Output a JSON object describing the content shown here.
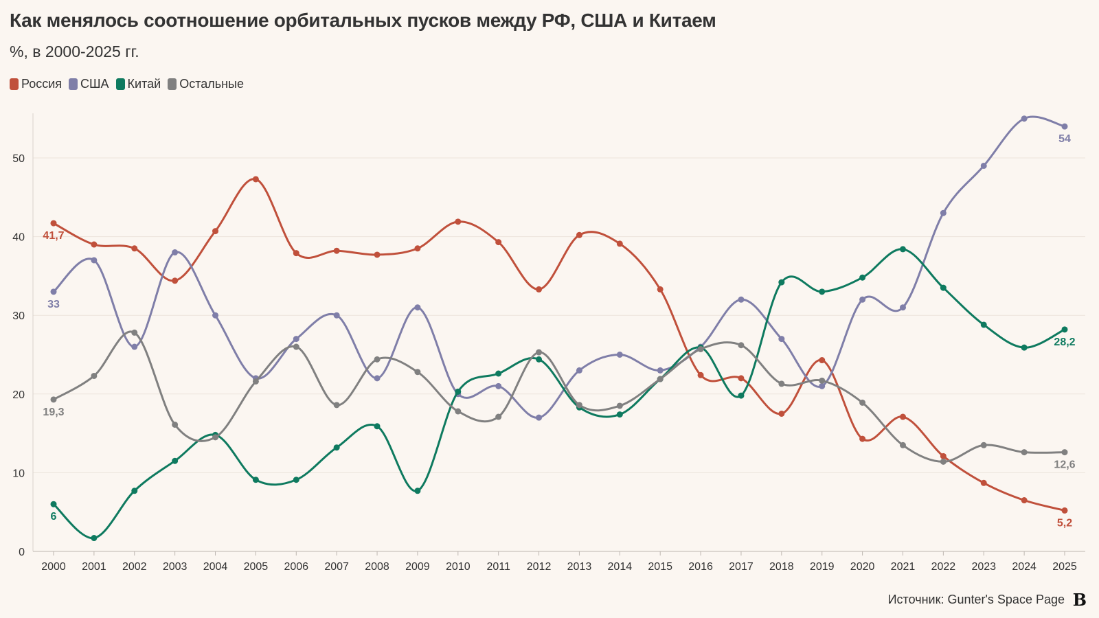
{
  "chart_data": {
    "type": "line",
    "title": "Как менялось соотношение орбитальных пусков между РФ, США и Китаем",
    "subtitle": "%, в 2000-2025 гг.",
    "x": [
      2000,
      2001,
      2002,
      2003,
      2004,
      2005,
      2006,
      2007,
      2008,
      2009,
      2010,
      2011,
      2012,
      2013,
      2014,
      2015,
      2016,
      2017,
      2018,
      2019,
      2020,
      2021,
      2022,
      2023,
      2024,
      2025
    ],
    "x_labels": [
      "2000",
      "2001",
      "2002",
      "2003",
      "2004",
      "2005",
      "2006",
      "2007",
      "2008",
      "2009",
      "2010",
      "2011",
      "2012",
      "2013",
      "2014",
      "2015",
      "2016",
      "2017",
      "2018",
      "2019",
      "2020",
      "2021",
      "2022",
      "2023",
      "2024",
      "2025"
    ],
    "ylim": [
      0,
      55
    ],
    "yticks": [
      0,
      10,
      20,
      30,
      40,
      50
    ],
    "ytick_labels": [
      "0",
      "10",
      "20",
      "30",
      "40",
      "50"
    ],
    "grid": true,
    "legend_position": "top-left",
    "series": [
      {
        "name": "Россия",
        "color": "#c0503b",
        "values": [
          41.7,
          39,
          38.5,
          34.4,
          40.7,
          47.3,
          37.9,
          38.2,
          37.7,
          38.5,
          41.9,
          39.3,
          33.3,
          40.2,
          39.1,
          33.3,
          22.4,
          22,
          17.5,
          24.3,
          14.3,
          17.1,
          12.1,
          8.7,
          6.5,
          5.2
        ],
        "start_label": "41,7",
        "end_label": "5,2"
      },
      {
        "name": "США",
        "color": "#7f7ea8",
        "values": [
          33,
          37,
          26,
          38,
          30,
          22,
          27,
          30,
          22,
          31,
          20,
          21,
          17,
          23,
          25,
          23,
          26,
          32,
          27,
          21,
          32,
          31,
          43,
          49,
          55,
          54
        ],
        "start_label": "33",
        "end_label": "54"
      },
      {
        "name": "Китай",
        "color": "#0e7a5f",
        "values": [
          6,
          1.7,
          7.7,
          11.5,
          14.8,
          9.1,
          9.1,
          13.2,
          15.9,
          7.7,
          20.3,
          22.6,
          24.4,
          18.3,
          17.4,
          21.9,
          25.9,
          19.8,
          34.2,
          33,
          34.8,
          38.4,
          33.5,
          28.8,
          25.9,
          28.2
        ],
        "start_label": "6",
        "end_label": "28,2"
      },
      {
        "name": "Остальные",
        "color": "#808080",
        "values": [
          19.3,
          22.3,
          27.8,
          16.1,
          14.5,
          21.6,
          26,
          18.6,
          24.4,
          22.8,
          17.8,
          17.1,
          25.3,
          18.6,
          18.5,
          21.9,
          25.7,
          26.2,
          21.3,
          21.7,
          18.9,
          13.5,
          11.4,
          13.5,
          12.6,
          12.6
        ],
        "start_label": "19,3",
        "end_label": "12,6"
      }
    ]
  },
  "source": "Источник: Gunter's Space Page",
  "logo": "B"
}
